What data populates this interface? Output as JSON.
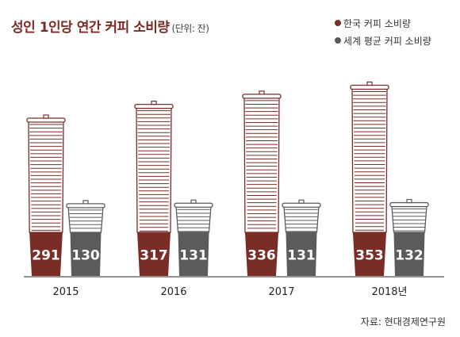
{
  "title": "성인 1인당 연간 커피 소비량",
  "unit_note": "(단위: 잔)",
  "source": "자료: 현대경제연구원",
  "colors": {
    "korea": "#7a2d26",
    "world": "#5b5b5b",
    "axis": "#555555"
  },
  "chart_data": {
    "type": "bar",
    "categories": [
      "2015",
      "2016",
      "2017",
      "2018년"
    ],
    "series": [
      {
        "name": "한국 커피 소비량",
        "values": [
          291,
          317,
          336,
          353
        ]
      },
      {
        "name": "세계 평균 커피 소비량",
        "values": [
          130,
          131,
          131,
          132
        ]
      }
    ],
    "legend_position": "top-right",
    "grid": false
  }
}
